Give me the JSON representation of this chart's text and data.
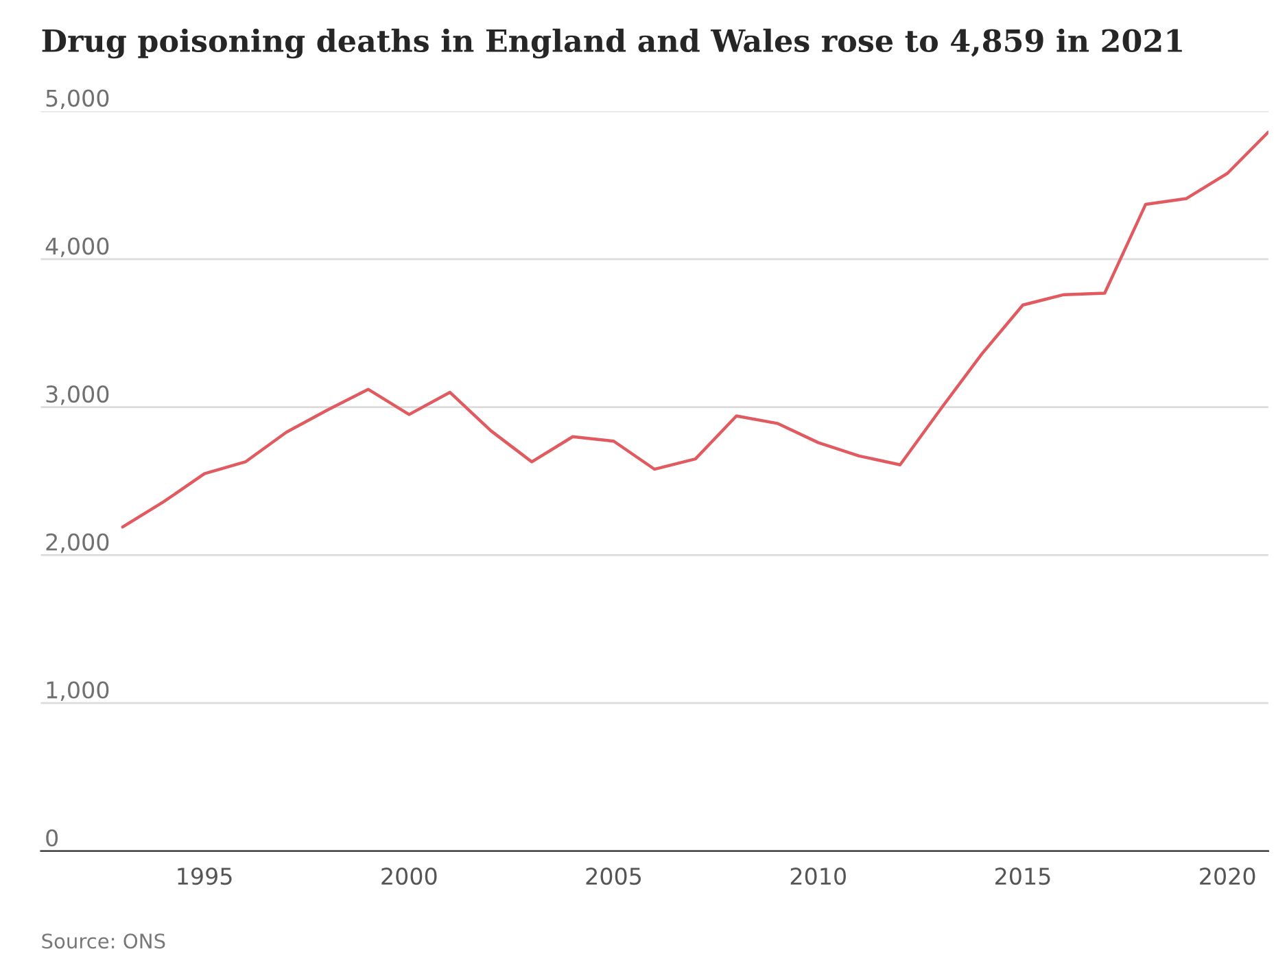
{
  "chart_data": {
    "type": "line",
    "title": "Drug poisoning deaths in England and Wales rose to 4,859 in 2021",
    "x": [
      1993,
      1994,
      1995,
      1996,
      1997,
      1998,
      1999,
      2000,
      2001,
      2002,
      2003,
      2004,
      2005,
      2006,
      2007,
      2008,
      2009,
      2010,
      2011,
      2012,
      2013,
      2014,
      2015,
      2016,
      2017,
      2018,
      2019,
      2020,
      2021
    ],
    "series": [
      {
        "color": "#e05a5f",
        "values": [
          2190,
          2360,
          2550,
          2630,
          2830,
          2980,
          3120,
          2950,
          3100,
          2840,
          2630,
          2800,
          2770,
          2580,
          2650,
          2940,
          2890,
          2760,
          2670,
          2610,
          2990,
          3360,
          3690,
          3760,
          3770,
          4370,
          4410,
          4580,
          4859
        ]
      }
    ],
    "xlim": [
      1991,
      2021
    ],
    "xticks": [
      1995,
      2000,
      2005,
      2010,
      2015,
      2020
    ],
    "ylim": [
      0,
      5000
    ],
    "yticks": [
      {
        "value": 0,
        "label": "0"
      },
      {
        "value": 1000,
        "label": "1,000"
      },
      {
        "value": 2000,
        "label": "2,000"
      },
      {
        "value": 3000,
        "label": "3,000"
      },
      {
        "value": 4000,
        "label": "4,000"
      },
      {
        "value": 5000,
        "label": "5,000"
      }
    ],
    "grid": "y",
    "legend": false,
    "marker": "none",
    "line_style": "solid",
    "annotations": [
      "Source: ONS"
    ]
  }
}
